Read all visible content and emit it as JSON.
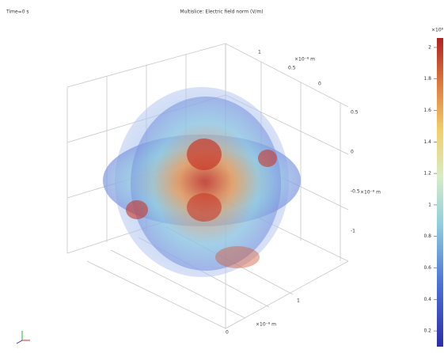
{
  "chart_data": {
    "type": "slice",
    "subtitle": "Time=0 s",
    "title": "Multislice: Electric field norm (V/m)",
    "colorbar": {
      "multiplier": "×10⁸",
      "lim": [
        0.1,
        2.06
      ],
      "ticks": [
        0.2,
        0.4,
        0.6,
        0.8,
        1,
        1.2,
        1.4,
        1.6,
        1.8,
        2
      ]
    },
    "axes": [
      {
        "label": "×10⁻⁸ m",
        "ticks": [
          1,
          0.5,
          0
        ]
      },
      {
        "label": "×10⁻⁸ m",
        "ticks": [
          0.5,
          0,
          -0.5,
          -1
        ]
      },
      {
        "label": "×10⁻⁸ m",
        "ticks": [
          1,
          0
        ]
      }
    ]
  }
}
